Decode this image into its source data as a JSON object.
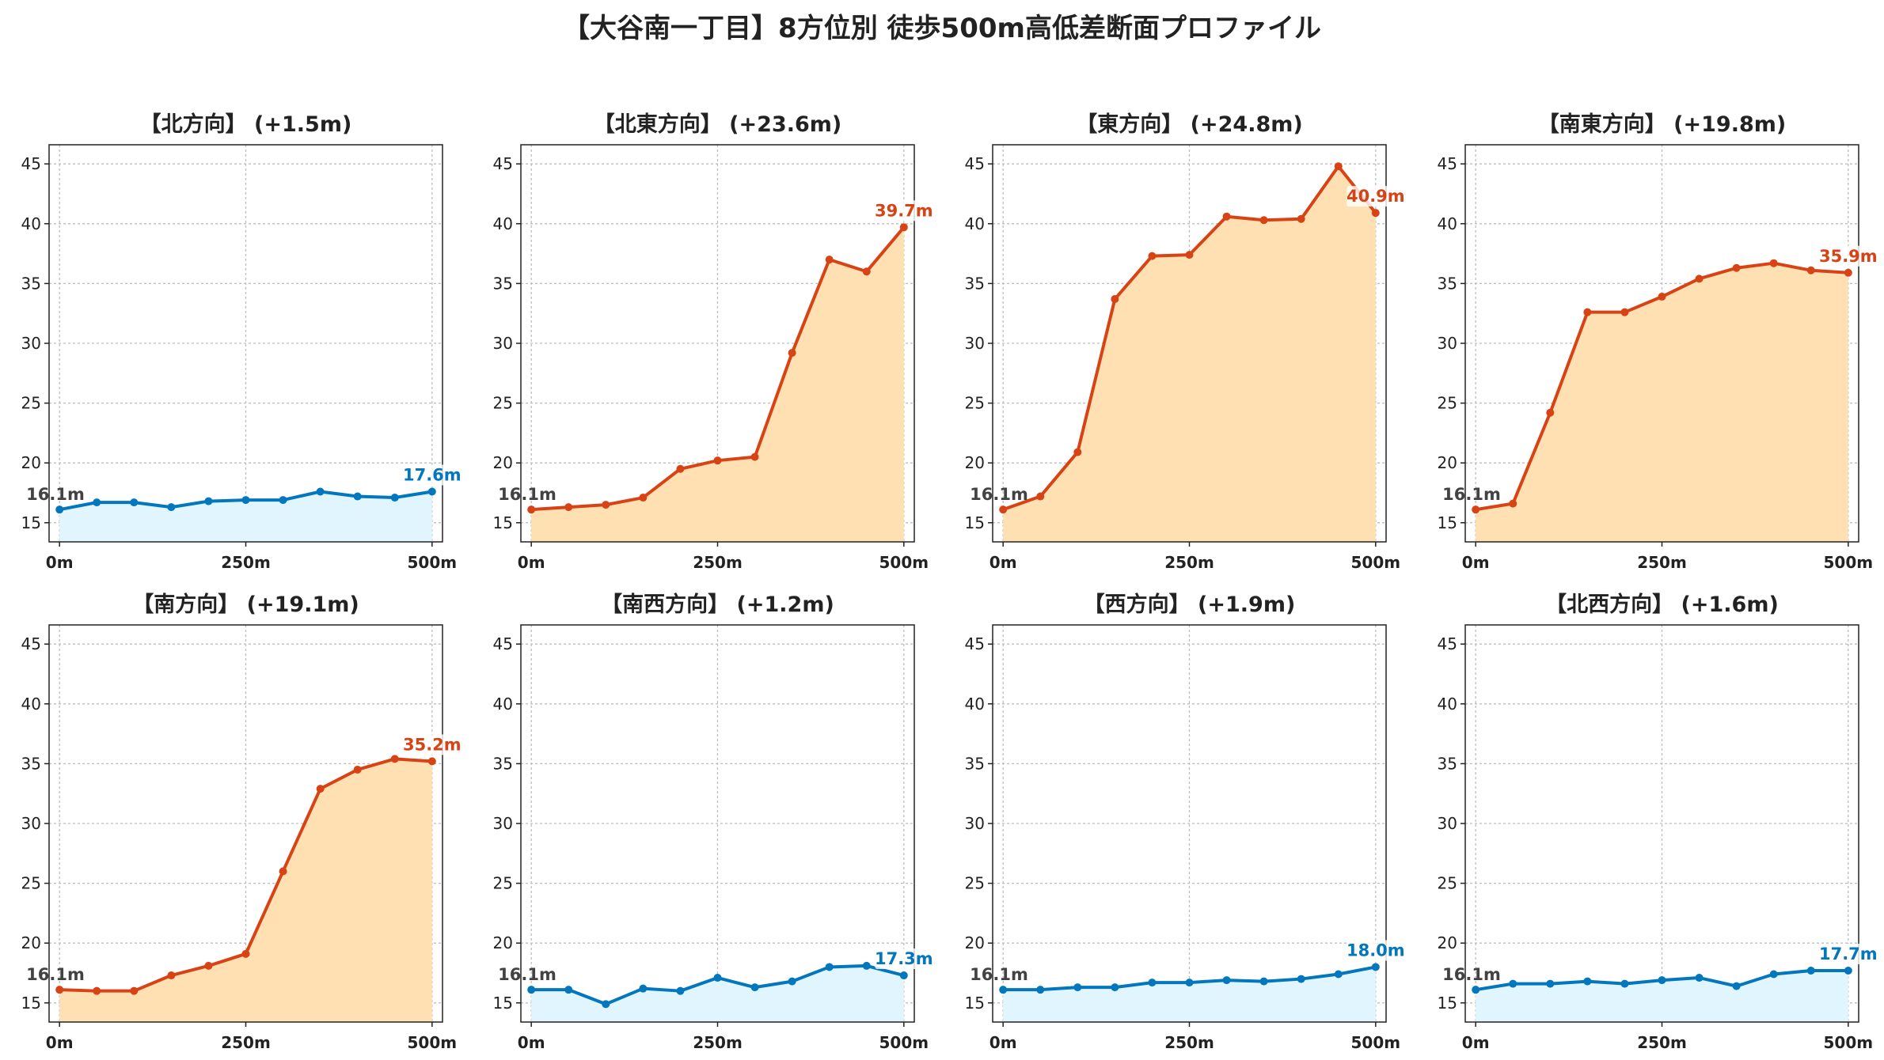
{
  "suptitle": "【大谷南一丁目】8方位別 徒歩500m高低差断面プロファイル",
  "colors": {
    "uphill_line": "#d84315",
    "uphill_fill": "#ffe0b2",
    "flat_line": "#0277bd",
    "flat_fill": "#e1f5fe",
    "start_label": "#424242",
    "grid": "#bdbdbd",
    "axis": "#222222"
  },
  "chart_data": [
    {
      "type": "area",
      "title": "【北方向】 (+1.5m)",
      "style": "flat",
      "x": [
        0,
        50,
        100,
        150,
        200,
        250,
        300,
        350,
        400,
        450,
        500
      ],
      "values": [
        16.1,
        16.7,
        16.7,
        16.3,
        16.8,
        16.9,
        16.9,
        17.6,
        17.2,
        17.1,
        17.6
      ],
      "start_label": "16.1m",
      "end_label": "17.6m",
      "ylim": [
        13.4,
        46.6
      ],
      "xlim": [
        -14,
        514
      ],
      "yticks": [
        15,
        20,
        25,
        30,
        35,
        40,
        45
      ],
      "xticks": [
        0,
        250,
        500
      ],
      "xtick_labels": [
        "0m",
        "250m",
        "500m"
      ],
      "grid": true
    },
    {
      "type": "area",
      "title": "【北東方向】 (+23.6m)",
      "style": "uphill",
      "x": [
        0,
        50,
        100,
        150,
        200,
        250,
        300,
        350,
        400,
        450,
        500
      ],
      "values": [
        16.1,
        16.3,
        16.5,
        17.1,
        19.5,
        20.2,
        20.5,
        29.2,
        37.0,
        36.0,
        39.7
      ],
      "start_label": "16.1m",
      "end_label": "39.7m",
      "ylim": [
        13.4,
        46.6
      ],
      "xlim": [
        -14,
        514
      ],
      "yticks": [
        15,
        20,
        25,
        30,
        35,
        40,
        45
      ],
      "xticks": [
        0,
        250,
        500
      ],
      "xtick_labels": [
        "0m",
        "250m",
        "500m"
      ],
      "grid": true
    },
    {
      "type": "area",
      "title": "【東方向】 (+24.8m)",
      "style": "uphill",
      "x": [
        0,
        50,
        100,
        150,
        200,
        250,
        300,
        350,
        400,
        450,
        500
      ],
      "values": [
        16.1,
        17.2,
        20.9,
        33.7,
        37.3,
        37.4,
        40.6,
        40.3,
        40.4,
        44.8,
        40.9
      ],
      "start_label": "16.1m",
      "end_label": "40.9m",
      "ylim": [
        13.4,
        46.6
      ],
      "xlim": [
        -14,
        514
      ],
      "yticks": [
        15,
        20,
        25,
        30,
        35,
        40,
        45
      ],
      "xticks": [
        0,
        250,
        500
      ],
      "xtick_labels": [
        "0m",
        "250m",
        "500m"
      ],
      "grid": true
    },
    {
      "type": "area",
      "title": "【南東方向】 (+19.8m)",
      "style": "uphill",
      "x": [
        0,
        50,
        100,
        150,
        200,
        250,
        300,
        350,
        400,
        450,
        500
      ],
      "values": [
        16.1,
        16.6,
        24.2,
        32.6,
        32.6,
        33.9,
        35.4,
        36.3,
        36.7,
        36.1,
        35.9
      ],
      "start_label": "16.1m",
      "end_label": "35.9m",
      "ylim": [
        13.4,
        46.6
      ],
      "xlim": [
        -14,
        514
      ],
      "yticks": [
        15,
        20,
        25,
        30,
        35,
        40,
        45
      ],
      "xticks": [
        0,
        250,
        500
      ],
      "xtick_labels": [
        "0m",
        "250m",
        "500m"
      ],
      "grid": true
    },
    {
      "type": "area",
      "title": "【南方向】 (+19.1m)",
      "style": "uphill",
      "x": [
        0,
        50,
        100,
        150,
        200,
        250,
        300,
        350,
        400,
        450,
        500
      ],
      "values": [
        16.1,
        16.0,
        16.0,
        17.3,
        18.1,
        19.1,
        26.0,
        32.9,
        34.5,
        35.4,
        35.2
      ],
      "start_label": "16.1m",
      "end_label": "35.2m",
      "ylim": [
        13.4,
        46.6
      ],
      "xlim": [
        -14,
        514
      ],
      "yticks": [
        15,
        20,
        25,
        30,
        35,
        40,
        45
      ],
      "xticks": [
        0,
        250,
        500
      ],
      "xtick_labels": [
        "0m",
        "250m",
        "500m"
      ],
      "grid": true
    },
    {
      "type": "area",
      "title": "【南西方向】 (+1.2m)",
      "style": "flat",
      "x": [
        0,
        50,
        100,
        150,
        200,
        250,
        300,
        350,
        400,
        450,
        500
      ],
      "values": [
        16.1,
        16.1,
        14.9,
        16.2,
        16.0,
        17.1,
        16.3,
        16.8,
        18.0,
        18.1,
        17.3
      ],
      "start_label": "16.1m",
      "end_label": "17.3m",
      "ylim": [
        13.4,
        46.6
      ],
      "xlim": [
        -14,
        514
      ],
      "yticks": [
        15,
        20,
        25,
        30,
        35,
        40,
        45
      ],
      "xticks": [
        0,
        250,
        500
      ],
      "xtick_labels": [
        "0m",
        "250m",
        "500m"
      ],
      "grid": true
    },
    {
      "type": "area",
      "title": "【西方向】 (+1.9m)",
      "style": "flat",
      "x": [
        0,
        50,
        100,
        150,
        200,
        250,
        300,
        350,
        400,
        450,
        500
      ],
      "values": [
        16.1,
        16.1,
        16.3,
        16.3,
        16.7,
        16.7,
        16.9,
        16.8,
        17.0,
        17.4,
        18.0
      ],
      "start_label": "16.1m",
      "end_label": "18.0m",
      "ylim": [
        13.4,
        46.6
      ],
      "xlim": [
        -14,
        514
      ],
      "yticks": [
        15,
        20,
        25,
        30,
        35,
        40,
        45
      ],
      "xticks": [
        0,
        250,
        500
      ],
      "xtick_labels": [
        "0m",
        "250m",
        "500m"
      ],
      "grid": true
    },
    {
      "type": "area",
      "title": "【北西方向】 (+1.6m)",
      "style": "flat",
      "x": [
        0,
        50,
        100,
        150,
        200,
        250,
        300,
        350,
        400,
        450,
        500
      ],
      "values": [
        16.1,
        16.6,
        16.6,
        16.8,
        16.6,
        16.9,
        17.1,
        16.4,
        17.4,
        17.7,
        17.7
      ],
      "start_label": "16.1m",
      "end_label": "17.7m",
      "ylim": [
        13.4,
        46.6
      ],
      "xlim": [
        -14,
        514
      ],
      "yticks": [
        15,
        20,
        25,
        30,
        35,
        40,
        45
      ],
      "xticks": [
        0,
        250,
        500
      ],
      "xtick_labels": [
        "0m",
        "250m",
        "500m"
      ],
      "grid": true
    }
  ]
}
